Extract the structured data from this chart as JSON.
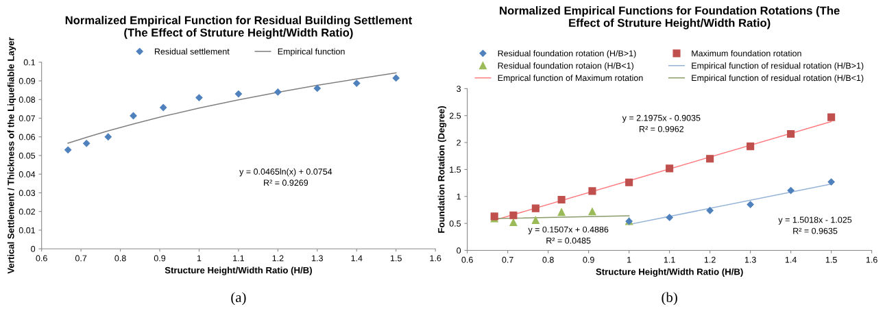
{
  "chart_data": [
    {
      "type": "scatter",
      "title": "Normalized Empirical Function for Residual Building Settlement\n(The Effect of Struture Height/Width Ratio)",
      "xlabel": "Structure Height/Width Ratio (H/B)",
      "ylabel": "Vertical Settlement / Thickness of the Liquefiable Layer",
      "xlim": [
        0.6,
        1.6
      ],
      "xticks": [
        0.6,
        0.7,
        0.8,
        0.9,
        1,
        1.1,
        1.2,
        1.3,
        1.4,
        1.5,
        1.6
      ],
      "ylim": [
        0,
        0.1
      ],
      "yticks": [
        0,
        0.01,
        0.02,
        0.03,
        0.04,
        0.05,
        0.06,
        0.07,
        0.08,
        0.09,
        0.1
      ],
      "grid": false,
      "legend": "top",
      "series": [
        {
          "name": "Residual settlement",
          "marker": "diamond",
          "color": "#4f81bd",
          "x": [
            0.667,
            0.714,
            0.769,
            0.833,
            0.909,
            1,
            1.1,
            1.2,
            1.3,
            1.4,
            1.5
          ],
          "values": [
            0.053,
            0.0565,
            0.06,
            0.0713,
            0.0757,
            0.081,
            0.083,
            0.084,
            0.086,
            0.0887,
            0.0915
          ]
        },
        {
          "name": "Empirical function",
          "type": "line",
          "marker": "none",
          "color": "#808080",
          "x": [
            0.667,
            0.714,
            0.769,
            0.833,
            0.909,
            1,
            1.1,
            1.2,
            1.3,
            1.4,
            1.5
          ],
          "values": [
            0.0566,
            0.0597,
            0.0632,
            0.0669,
            0.071,
            0.0754,
            0.0798,
            0.0839,
            0.0876,
            0.091,
            0.0943
          ]
        }
      ],
      "annotations": [
        "y = 0.0465ln(x) + 0.0754\nR² = 0.9269",
        "(a)"
      ]
    },
    {
      "type": "scatter",
      "title": "Normalized Empirical Functions for Foundation Rotations (The\nEffect of Struture Height/Width Ratio)",
      "xlabel": "Structure Height/Width Ratio (H/B)",
      "ylabel": "Foundation Rotation (Degree)",
      "xlim": [
        0.6,
        1.6
      ],
      "xticks": [
        0.6,
        0.7,
        0.8,
        0.9,
        1,
        1.1,
        1.2,
        1.3,
        1.4,
        1.5,
        1.6
      ],
      "ylim": [
        0,
        3
      ],
      "yticks": [
        0,
        0.5,
        1,
        1.5,
        2,
        2.5,
        3
      ],
      "grid": false,
      "legend": "top",
      "series": [
        {
          "name": "Residual foundation rotation (H/B>1)",
          "marker": "diamond",
          "color": "#4f81bd",
          "x": [
            1,
            1.1,
            1.2,
            1.3,
            1.4,
            1.5
          ],
          "values": [
            0.54,
            0.61,
            0.74,
            0.85,
            1.11,
            1.27
          ]
        },
        {
          "name": "Maximum foundation rotation",
          "marker": "square",
          "color": "#c0504d",
          "x": [
            0.667,
            0.714,
            0.769,
            0.833,
            0.909,
            1,
            1.1,
            1.2,
            1.3,
            1.4,
            1.5
          ],
          "values": [
            0.63,
            0.65,
            0.78,
            0.94,
            1.1,
            1.26,
            1.52,
            1.7,
            1.93,
            2.16,
            2.47
          ]
        },
        {
          "name": "Residual foundation rotaion (H/B<1)",
          "marker": "triangle",
          "color": "#9bbb59",
          "x": [
            0.667,
            0.714,
            0.769,
            0.833,
            0.909,
            1
          ],
          "values": [
            0.59,
            0.52,
            0.56,
            0.71,
            0.72,
            0.54
          ]
        },
        {
          "name": "Empirical function of residual rotation (H/B>1)",
          "type": "line",
          "marker": "none",
          "color": "#95b3d7",
          "x": [
            1,
            1.5
          ],
          "values": [
            0.48,
            1.23
          ]
        },
        {
          "name": "Emprical function of Maximum rotation",
          "type": "line",
          "marker": "none",
          "color": "#ff7c80",
          "x": [
            0.667,
            1.5
          ],
          "values": [
            0.56,
            2.39
          ]
        },
        {
          "name": "Empirical function of residual rotation (H/B<1)",
          "type": "line",
          "marker": "none",
          "color": "#8a9a6b",
          "x": [
            0.667,
            1
          ],
          "values": [
            0.59,
            0.64
          ]
        }
      ],
      "annotations": [
        "y = 2.1975x - 0.9035\nR² = 0.9962",
        "y = 1.5018x - 1.025\nR² = 0.9635",
        "y = 0.1507x + 0.4886\nR² = 0.0485",
        "(b)"
      ]
    }
  ]
}
